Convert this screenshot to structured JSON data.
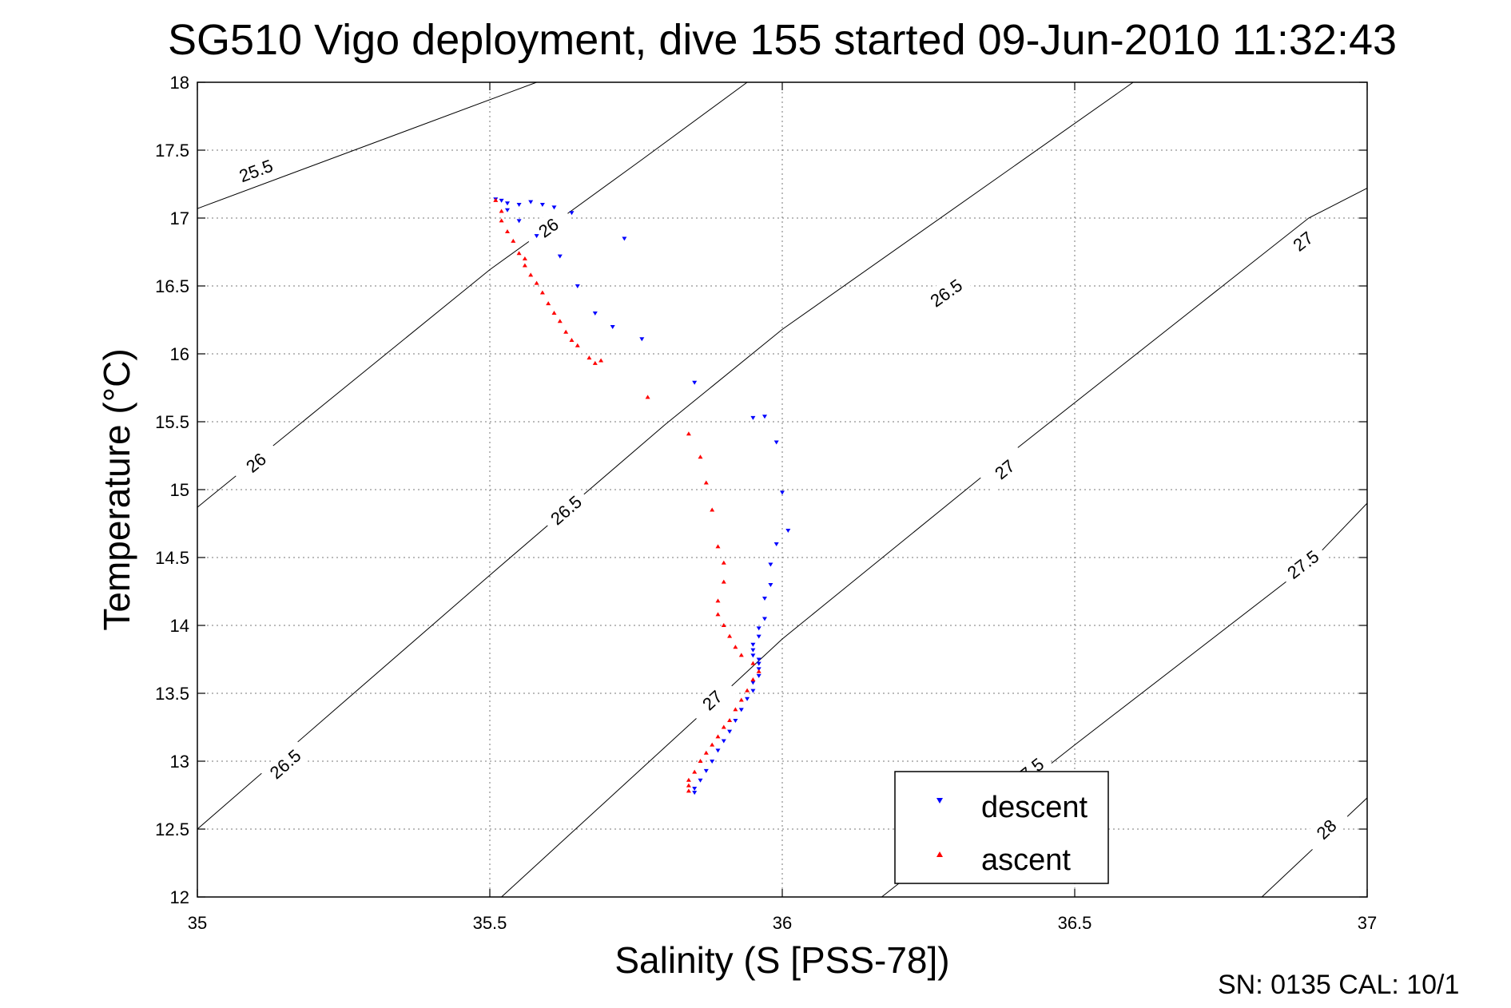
{
  "chart_data": {
    "type": "scatter",
    "title": "SG510 Vigo deployment, dive 155 started 09-Jun-2010 11:32:43",
    "xlabel": "Salinity (S [PSS-78])",
    "ylabel": "Temperature (°C)",
    "xlim": [
      35,
      37
    ],
    "ylim": [
      12,
      18
    ],
    "x_ticks": [
      35,
      35.5,
      36,
      36.5,
      37
    ],
    "x_tick_labels": [
      "35",
      "35.5",
      "36",
      "36.5",
      "37"
    ],
    "y_ticks": [
      12,
      12.5,
      13,
      13.5,
      14,
      14.5,
      15,
      15.5,
      16,
      16.5,
      17,
      17.5,
      18
    ],
    "y_tick_labels": [
      "12",
      "12.5",
      "13",
      "13.5",
      "14",
      "14.5",
      "15",
      "15.5",
      "16",
      "16.5",
      "17",
      "17.5",
      "18"
    ],
    "grid": true,
    "legend_position": "bottom-right",
    "density_contours": [
      {
        "sigma": 25.5,
        "points": [
          [
            35,
            17.07
          ],
          [
            35.58,
            18.0
          ]
        ],
        "labels": [
          {
            "text": "25.5",
            "x": 35.1,
            "y": 17.35
          }
        ]
      },
      {
        "sigma": 26,
        "points": [
          [
            35,
            14.87
          ],
          [
            35.5,
            16.62
          ],
          [
            35.6,
            16.93
          ],
          [
            35.76,
            17.43
          ],
          [
            35.94,
            18.0
          ]
        ],
        "labels": [
          {
            "text": "26",
            "x": 35.1,
            "y": 15.2
          },
          {
            "text": "26",
            "x": 35.6,
            "y": 16.93
          }
        ]
      },
      {
        "sigma": 26.5,
        "points": [
          [
            35,
            12.5
          ],
          [
            35.5,
            14.37
          ],
          [
            35.8,
            15.48
          ],
          [
            36.0,
            16.18
          ],
          [
            36.6,
            18.0
          ]
        ],
        "labels": [
          {
            "text": "26.5",
            "x": 35.15,
            "y": 12.98
          },
          {
            "text": "26.5",
            "x": 35.63,
            "y": 14.85
          },
          {
            "text": "26.5",
            "x": 36.28,
            "y": 16.45
          }
        ]
      },
      {
        "sigma": 27,
        "points": [
          [
            35.52,
            12.0
          ],
          [
            35.9,
            13.5
          ],
          [
            36.0,
            13.9
          ],
          [
            36.4,
            15.3
          ],
          [
            36.9,
            17.0
          ],
          [
            37.0,
            17.22
          ]
        ],
        "labels": [
          {
            "text": "27",
            "x": 35.88,
            "y": 13.45
          },
          {
            "text": "27",
            "x": 36.38,
            "y": 15.15
          },
          {
            "text": "27",
            "x": 36.89,
            "y": 16.83
          }
        ]
      },
      {
        "sigma": 27.5,
        "points": [
          [
            36.17,
            12.0
          ],
          [
            36.5,
            13.12
          ],
          [
            36.9,
            14.45
          ],
          [
            37.0,
            14.9
          ]
        ],
        "labels": [
          {
            "text": "27.5",
            "x": 36.42,
            "y": 12.92
          },
          {
            "text": "27.5",
            "x": 36.89,
            "y": 14.45
          }
        ]
      },
      {
        "sigma": 28,
        "points": [
          [
            36.82,
            12.0
          ],
          [
            37.0,
            12.73
          ]
        ],
        "labels": [
          {
            "text": "28",
            "x": 36.93,
            "y": 12.5
          }
        ]
      }
    ],
    "series": [
      {
        "name": "descent",
        "color": "#0000ff",
        "marker": "triangle-down",
        "x": [
          35.51,
          35.52,
          35.53,
          35.55,
          35.57,
          35.59,
          35.61,
          35.64,
          35.53,
          35.55,
          35.58,
          35.62,
          35.65,
          35.68,
          35.71,
          35.76,
          35.73,
          35.85,
          35.95,
          35.97,
          35.99,
          36.0,
          36.01,
          35.99,
          35.98,
          35.98,
          35.97,
          35.97,
          35.96,
          35.96,
          35.95,
          35.95,
          35.95,
          35.96,
          35.96,
          35.96,
          35.96,
          35.95,
          35.95,
          35.94,
          35.93,
          35.92,
          35.91,
          35.9,
          35.89,
          35.88,
          35.87,
          35.86,
          35.85,
          35.85
        ],
        "y": [
          17.14,
          17.13,
          17.11,
          17.1,
          17.12,
          17.1,
          17.08,
          17.04,
          17.06,
          16.98,
          16.87,
          16.72,
          16.5,
          16.3,
          16.2,
          16.11,
          16.85,
          15.79,
          15.53,
          15.54,
          15.35,
          14.98,
          14.7,
          14.6,
          14.45,
          14.3,
          14.2,
          14.05,
          13.98,
          13.92,
          13.86,
          13.82,
          13.78,
          13.75,
          13.72,
          13.68,
          13.63,
          13.58,
          13.52,
          13.46,
          13.38,
          13.3,
          13.22,
          13.15,
          13.08,
          13.0,
          12.93,
          12.86,
          12.8,
          12.77
        ]
      },
      {
        "name": "ascent",
        "color": "#ff0000",
        "marker": "triangle-up",
        "x": [
          35.51,
          35.52,
          35.52,
          35.53,
          35.54,
          35.55,
          35.56,
          35.56,
          35.57,
          35.58,
          35.59,
          35.6,
          35.61,
          35.62,
          35.63,
          35.64,
          35.65,
          35.67,
          35.68,
          35.69,
          35.77,
          35.84,
          35.86,
          35.87,
          35.88,
          35.89,
          35.9,
          35.9,
          35.89,
          35.89,
          35.9,
          35.91,
          35.92,
          35.93,
          35.95,
          35.96,
          35.95,
          35.94,
          35.93,
          35.92,
          35.91,
          35.9,
          35.89,
          35.88,
          35.87,
          35.86,
          35.85,
          35.84,
          35.84,
          35.84
        ],
        "y": [
          17.13,
          17.05,
          16.98,
          16.9,
          16.83,
          16.74,
          16.7,
          16.65,
          16.58,
          16.52,
          16.45,
          16.37,
          16.3,
          16.24,
          16.16,
          16.1,
          16.06,
          15.97,
          15.93,
          15.95,
          15.68,
          15.41,
          15.24,
          15.05,
          14.85,
          14.58,
          14.46,
          14.32,
          14.18,
          14.08,
          14.0,
          13.92,
          13.84,
          13.78,
          13.72,
          13.66,
          13.6,
          13.52,
          13.45,
          13.38,
          13.3,
          13.25,
          13.18,
          13.12,
          13.06,
          13.0,
          12.92,
          12.86,
          12.82,
          12.78
        ]
      }
    ]
  },
  "legend": {
    "entries": [
      {
        "label": "descent",
        "color": "#0000ff",
        "marker": "triangle-down"
      },
      {
        "label": "ascent",
        "color": "#ff0000",
        "marker": "triangle-up"
      }
    ]
  },
  "footer": {
    "serial_text": "SN: 0135  CAL: 10/1"
  }
}
